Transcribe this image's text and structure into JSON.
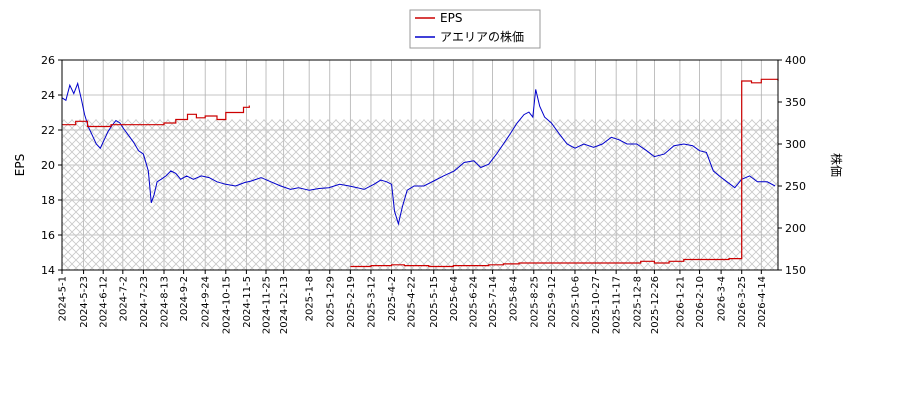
{
  "chart_data": {
    "type": "line",
    "legend": {
      "placement": "top-center",
      "entries": [
        "EPS",
        "アエリアの株価"
      ]
    },
    "colors": {
      "eps": "#cc0000",
      "price": "#0000cc",
      "grid": "#b0b0b0",
      "hatch": "#c8c8c8"
    },
    "grid": true,
    "left_axis": {
      "label": "EPS",
      "ylim": [
        14,
        26
      ],
      "ticks": [
        "14",
        "16",
        "18",
        "20",
        "22",
        "24",
        "26"
      ]
    },
    "right_axis": {
      "label": "株価",
      "ylim": [
        150,
        400
      ],
      "ticks": [
        "150",
        "200",
        "250",
        "300",
        "350",
        "400"
      ]
    },
    "x_axis": {
      "range": [
        "2024-05-01",
        "2026-05-01"
      ],
      "ticks": [
        "2024-5-1",
        "2024-5-23",
        "2024-6-12",
        "2024-7-2",
        "2024-7-23",
        "2024-8-13",
        "2024-9-2",
        "2024-9-24",
        "2024-10-15",
        "2024-11-5",
        "2024-11-25",
        "2024-12-13",
        "2025-1-8",
        "2025-1-29",
        "2025-2-19",
        "2025-3-12",
        "2025-4-2",
        "2025-4-22",
        "2025-5-15",
        "2025-6-4",
        "2025-6-24",
        "2025-7-14",
        "2025-8-4",
        "2025-8-25",
        "2025-9-12",
        "2025-10-6",
        "2025-10-27",
        "2025-11-17",
        "2025-12-8",
        "2025-12-26",
        "2026-1-21",
        "2026-2-10",
        "2026-3-4",
        "2026-3-25",
        "2026-4-14"
      ]
    },
    "forecast_band": {
      "x_start": "2024-05-01",
      "x_end": "2026-05-01",
      "y_top": 22.6,
      "y_bottom": 14
    },
    "series": [
      {
        "name": "EPS",
        "axis": "left",
        "step": true,
        "segments": [
          {
            "x": [
              "2024-05-01",
              "2024-05-15",
              "2024-05-27",
              "2024-06-20",
              "2024-07-20",
              "2024-08-13",
              "2024-08-25",
              "2024-09-06",
              "2024-09-15",
              "2024-09-24",
              "2024-10-06",
              "2024-10-15",
              "2024-10-26",
              "2024-11-02",
              "2024-11-08"
            ],
            "y": [
              22.3,
              22.5,
              22.2,
              22.3,
              22.3,
              22.4,
              22.6,
              22.9,
              22.7,
              22.8,
              22.6,
              23.0,
              23.0,
              23.3,
              23.4
            ]
          },
          {
            "x": [
              "2025-02-19",
              "2025-03-12",
              "2025-04-02",
              "2025-04-15",
              "2025-05-10",
              "2025-06-04",
              "2025-07-10",
              "2025-07-25",
              "2025-08-10",
              "2025-08-25",
              "2025-12-12",
              "2025-12-26",
              "2026-01-10",
              "2026-01-25",
              "2026-03-12",
              "2026-03-25",
              "2026-04-04",
              "2026-04-14",
              "2026-05-01"
            ],
            "y": [
              14.2,
              14.25,
              14.3,
              14.25,
              14.2,
              14.25,
              14.3,
              14.35,
              14.4,
              14.4,
              14.5,
              14.4,
              14.5,
              14.6,
              14.65,
              24.8,
              24.7,
              24.9,
              24.8
            ]
          }
        ]
      },
      {
        "name": "アエリアの株価",
        "axis": "right",
        "x": [
          "2024-05-01",
          "2024-05-05",
          "2024-05-09",
          "2024-05-13",
          "2024-05-17",
          "2024-05-21",
          "2024-05-24",
          "2024-05-28",
          "2024-06-01",
          "2024-06-05",
          "2024-06-09",
          "2024-06-13",
          "2024-06-17",
          "2024-06-21",
          "2024-06-25",
          "2024-06-29",
          "2024-07-03",
          "2024-07-08",
          "2024-07-13",
          "2024-07-18",
          "2024-07-23",
          "2024-07-28",
          "2024-07-31",
          "2024-08-03",
          "2024-08-06",
          "2024-08-10",
          "2024-08-15",
          "2024-08-20",
          "2024-08-25",
          "2024-08-30",
          "2024-09-05",
          "2024-09-12",
          "2024-09-20",
          "2024-09-28",
          "2024-10-06",
          "2024-10-15",
          "2024-10-25",
          "2024-11-03",
          "2024-11-10",
          "2024-11-20",
          "2024-11-30",
          "2024-12-10",
          "2024-12-20",
          "2024-12-28",
          "2025-01-08",
          "2025-01-18",
          "2025-01-28",
          "2025-02-08",
          "2025-02-18",
          "2025-02-26",
          "2025-03-05",
          "2025-03-15",
          "2025-03-22",
          "2025-03-28",
          "2025-04-02",
          "2025-04-05",
          "2025-04-09",
          "2025-04-13",
          "2025-04-18",
          "2025-04-25",
          "2025-05-05",
          "2025-05-15",
          "2025-05-25",
          "2025-06-05",
          "2025-06-15",
          "2025-06-25",
          "2025-07-02",
          "2025-07-10",
          "2025-07-18",
          "2025-07-25",
          "2025-08-01",
          "2025-08-08",
          "2025-08-15",
          "2025-08-20",
          "2025-08-24",
          "2025-08-27",
          "2025-08-31",
          "2025-09-05",
          "2025-09-12",
          "2025-09-20",
          "2025-09-28",
          "2025-10-06",
          "2025-10-15",
          "2025-10-25",
          "2025-11-03",
          "2025-11-12",
          "2025-11-20",
          "2025-11-28",
          "2025-12-08",
          "2025-12-18",
          "2025-12-26",
          "2026-01-05",
          "2026-01-15",
          "2026-01-25",
          "2026-02-03",
          "2026-02-10",
          "2026-02-17",
          "2026-02-24",
          "2026-03-02",
          "2026-03-10",
          "2026-03-18",
          "2026-03-25",
          "2026-04-02",
          "2026-04-10",
          "2026-04-20",
          "2026-04-28"
        ],
        "y": [
          355,
          352,
          370,
          360,
          372,
          352,
          335,
          320,
          310,
          300,
          295,
          305,
          315,
          322,
          328,
          325,
          318,
          310,
          302,
          292,
          288,
          268,
          230,
          240,
          255,
          258,
          262,
          268,
          265,
          258,
          262,
          258,
          262,
          260,
          255,
          252,
          250,
          254,
          256,
          260,
          255,
          250,
          246,
          248,
          245,
          247,
          248,
          252,
          250,
          248,
          246,
          252,
          257,
          255,
          252,
          220,
          205,
          225,
          245,
          250,
          250,
          256,
          262,
          268,
          278,
          280,
          272,
          276,
          288,
          300,
          312,
          325,
          335,
          338,
          332,
          365,
          345,
          332,
          325,
          312,
          300,
          295,
          300,
          296,
          300,
          308,
          305,
          300,
          300,
          292,
          285,
          288,
          298,
          300,
          298,
          292,
          290,
          268,
          262,
          255,
          248,
          258,
          262,
          255,
          255,
          250
        ]
      }
    ]
  }
}
